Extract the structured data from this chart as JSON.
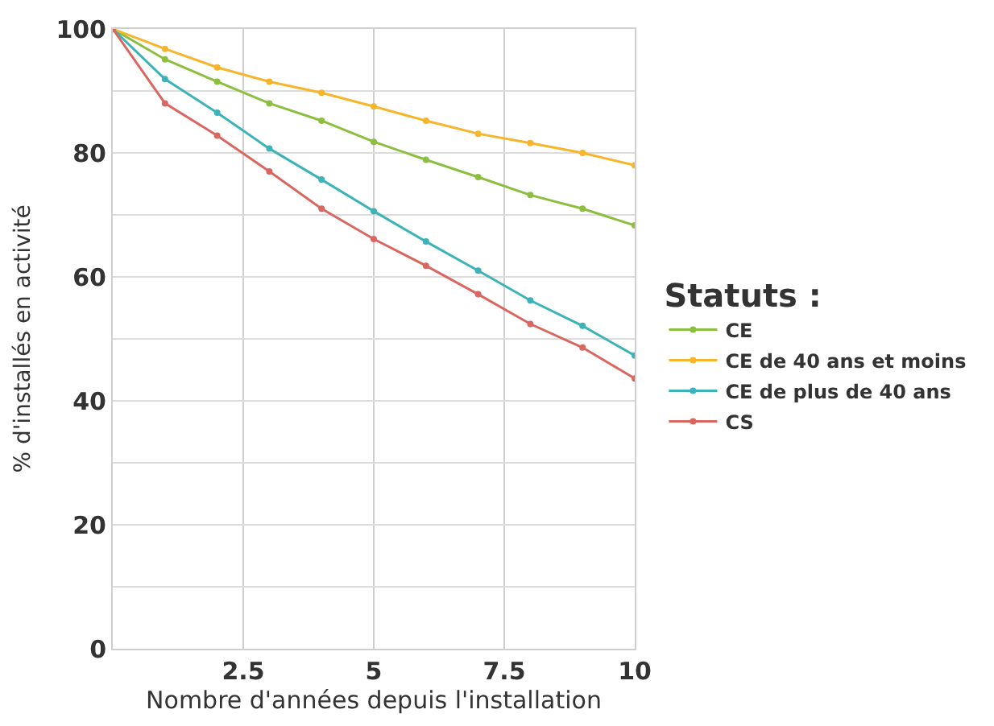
{
  "chart_data": {
    "type": "line",
    "xlabel": "Nombre d'années depuis l'installation",
    "ylabel": "% d'installés en activité",
    "legend_title": "Statuts :",
    "x": [
      0,
      1,
      2,
      3,
      4,
      5,
      6,
      7,
      8,
      9,
      10
    ],
    "series": [
      {
        "name": "CE",
        "color": "#8cbf3f",
        "values": [
          100,
          95.1,
          91.5,
          88,
          85.2,
          81.8,
          78.9,
          76.1,
          73.2,
          71,
          68.3
        ]
      },
      {
        "name": "CE de 40 ans et moins",
        "color": "#f7b52c",
        "values": [
          100,
          96.8,
          93.8,
          91.5,
          89.7,
          87.5,
          85.2,
          83.1,
          81.6,
          80,
          78
        ]
      },
      {
        "name": "CE de plus de 40 ans",
        "color": "#3bb3b8",
        "values": [
          100,
          91.9,
          86.5,
          80.7,
          75.7,
          70.6,
          65.7,
          61,
          56.2,
          52.1,
          47.3
        ]
      },
      {
        "name": "CS",
        "color": "#d9675f",
        "values": [
          100,
          88,
          82.8,
          77,
          71,
          66.1,
          61.8,
          57.2,
          52.4,
          48.6,
          43.6
        ]
      }
    ],
    "xlim": [
      0,
      10
    ],
    "xticks": [
      2.5,
      5,
      7.5,
      10
    ],
    "ylim": [
      0,
      100
    ],
    "yticks": [
      0,
      {
        "value": 10,
        "label": null
      },
      20,
      {
        "value": 30,
        "label": null
      },
      40,
      {
        "value": 50,
        "label": null
      },
      60,
      {
        "value": 70,
        "label": null
      },
      80,
      {
        "value": 90,
        "label": null
      },
      100
    ],
    "grid": true,
    "legend": "right",
    "marker": "circle",
    "line_style": "solid"
  }
}
